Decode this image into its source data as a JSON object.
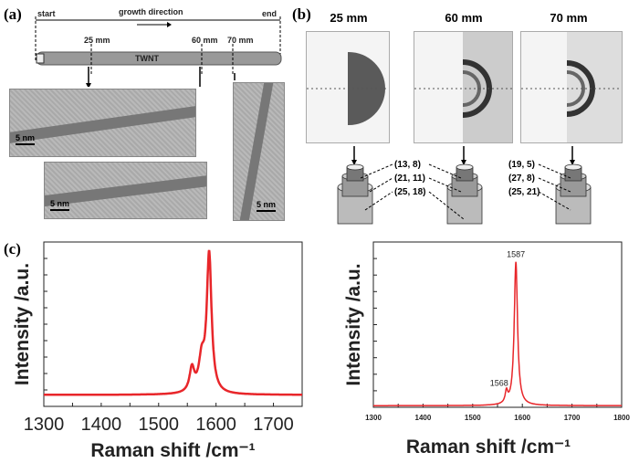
{
  "panel_a": {
    "label": "(a)",
    "start": "start",
    "end": "end",
    "growth_direction": "growth direction",
    "tube_label": "TWNT",
    "positions": [
      "25 mm",
      "60 mm",
      "70 mm"
    ],
    "scale_bars": [
      "5 nm",
      "5 nm",
      "5 nm"
    ]
  },
  "panel_b": {
    "label": "(b)",
    "patterns": [
      {
        "title": "25 mm"
      },
      {
        "title": "60 mm"
      },
      {
        "title": "70 mm"
      }
    ],
    "chiralities_left": [
      "(13, 8)",
      "(21, 11)",
      "(25, 18)"
    ],
    "chiralities_right": [
      "(19, 5)",
      "(27, 8)",
      "(25, 21)"
    ]
  },
  "panel_c": {
    "label": "(c)"
  },
  "chart_data": [
    {
      "type": "line",
      "xlabel": "Raman shift /cm-1",
      "ylabel": "Intensity /a.u.",
      "xlim": [
        1300,
        1750
      ],
      "xticks": [
        "1300",
        "1400",
        "1500",
        "1600",
        "1700"
      ],
      "color": "#e8262a",
      "peaks": [
        {
          "x": 1558,
          "height": 0.17
        },
        {
          "x": 1575,
          "height": 0.22
        },
        {
          "x": 1588,
          "height": 1.0
        }
      ]
    },
    {
      "type": "line",
      "xlabel": "Raman shift /cm-1",
      "ylabel": "Intensity /a.u.",
      "xlim": [
        1300,
        1800
      ],
      "xticks": [
        "1300",
        "1400",
        "1500",
        "1600",
        "1700",
        "1800"
      ],
      "color": "#e8262a",
      "annotations": [
        "1568",
        "1587"
      ],
      "peaks": [
        {
          "x": 1568,
          "height": 0.08
        },
        {
          "x": 1587,
          "height": 1.0
        }
      ]
    }
  ]
}
